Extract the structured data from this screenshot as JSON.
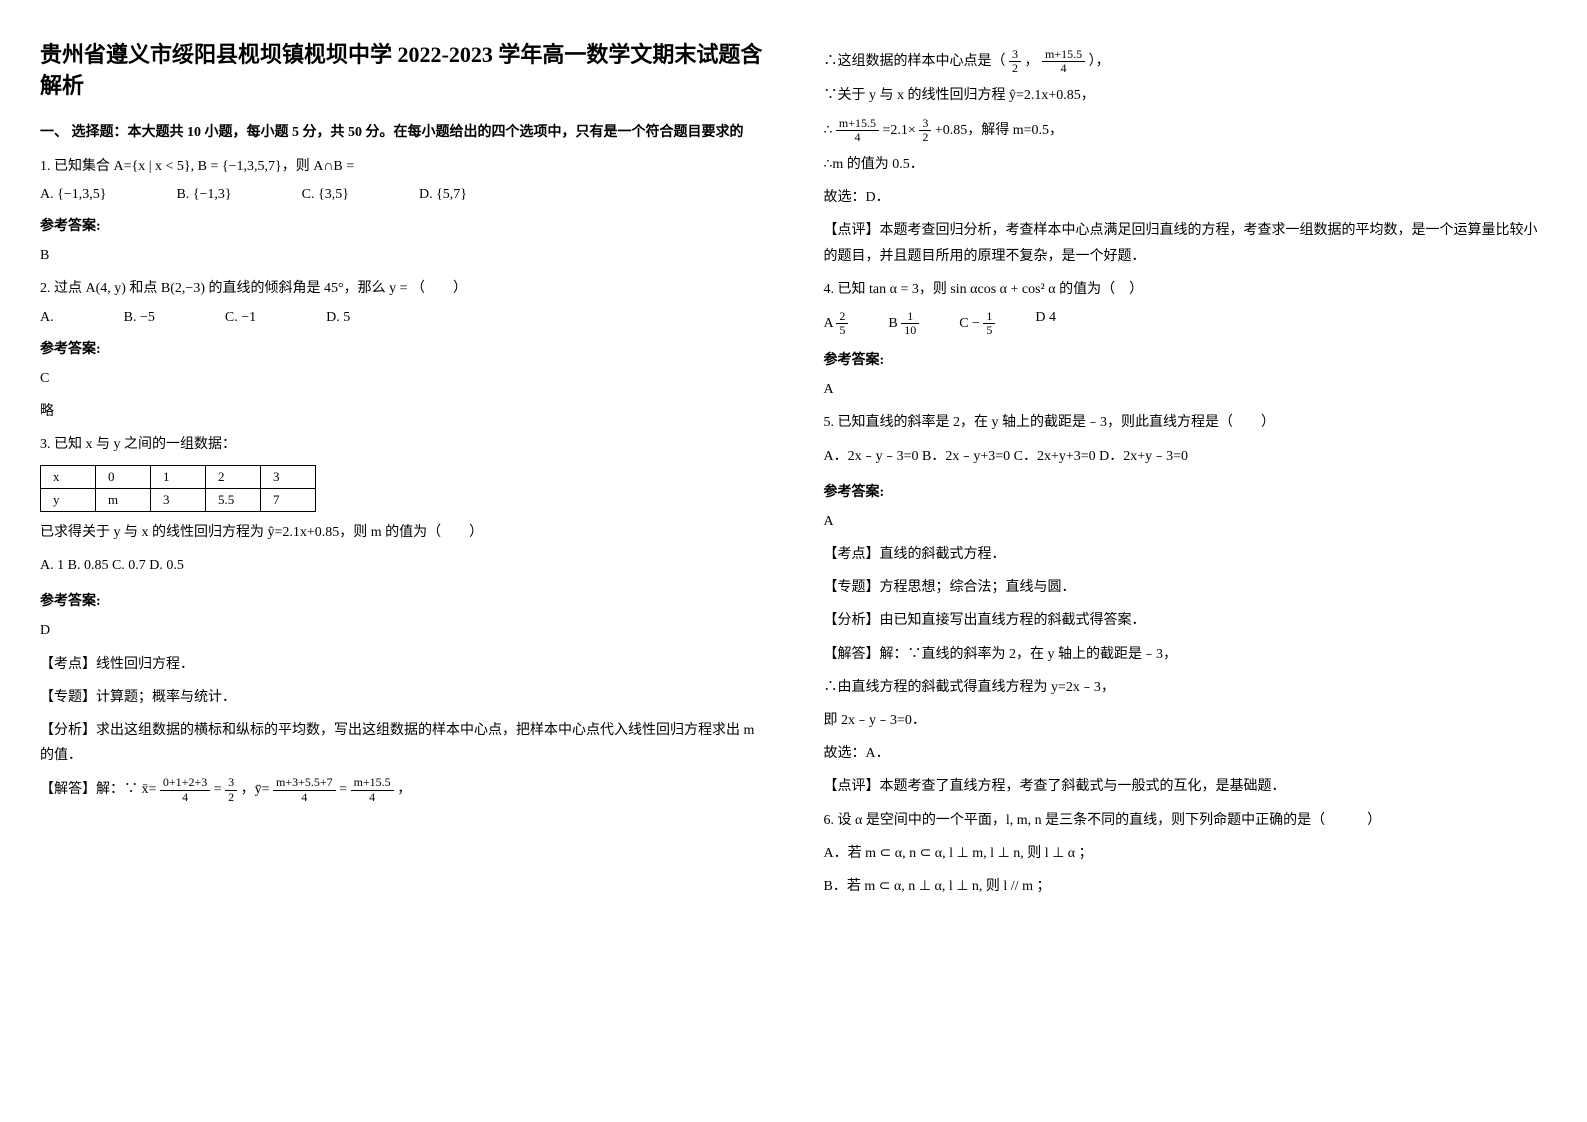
{
  "title": "贵州省遵义市绥阳县枧坝镇枧坝中学 2022-2023 学年高一数学文期末试题含解析",
  "sectionHead": "一、 选择题：本大题共 10 小题，每小题 5 分，共 50 分。在每小题给出的四个选项中，只有是一个符合题目要求的",
  "q1": {
    "stem": "1. 已知集合 A={x | x < 5}, B = {−1,3,5,7}，则 A∩B =",
    "opts": {
      "A": "{−1,3,5}",
      "B": "{−1,3}",
      "C": "{3,5}",
      "D": "{5,7}"
    },
    "ansLabel": "参考答案:",
    "ans": "B"
  },
  "q2": {
    "stem": "2. 过点 A(4, y) 和点 B(2,−3) 的直线的倾斜角是 45°，那么 y = （　　）",
    "opts": {
      "A": "A.",
      "B": "B.  −5",
      "C": "C.  −1",
      "D": "D.  5"
    },
    "ansLabel": "参考答案:",
    "ans": "C",
    "note": "略"
  },
  "q3": {
    "stem": "3. 已知 x 与 y 之间的一组数据：",
    "table": {
      "row1": [
        "x",
        "0",
        "1",
        "2",
        "3"
      ],
      "row2": [
        "y",
        "m",
        "3",
        "5.5",
        "7"
      ]
    },
    "stem2": "已求得关于 y 与 x 的线性回归方程为 ŷ=2.1x+0.85，则 m 的值为（　　）",
    "opts": "A. 1   B. 0.85     C. 0.7  D. 0.5",
    "ansLabel": "参考答案:",
    "ans": "D",
    "kd": "【考点】线性回归方程．",
    "zt": "【专题】计算题；概率与统计．",
    "fx": "【分析】求出这组数据的横标和纵标的平均数，写出这组数据的样本中心点，把样本中心点代入线性回归方程求出 m 的值．",
    "jd_pre": "【解答】解：∵ x̄=",
    "jd_frac1_num": "0+1+2+3",
    "jd_frac1_den": "4",
    "jd_eq1": " = ",
    "jd_frac2_num": "3",
    "jd_frac2_den": "2",
    "jd_mid": "，ȳ= ",
    "jd_frac3_num": "m+3+5.5+7",
    "jd_frac3_den": "4",
    "jd_eq2": " = ",
    "jd_frac4_num": "m+15.5",
    "jd_frac4_den": "4",
    "jd_tail": "，",
    "r_line1_pre": "∴这组数据的样本中心点是（",
    "r_line1_f1n": "3",
    "r_line1_f1d": "2",
    "r_line1_mid": "，",
    "r_line1_f2n": "m+15.5",
    "r_line1_f2d": "4",
    "r_line1_tail": "），",
    "r_line2": "∵关于 y 与 x 的线性回归方程 ŷ=2.1x+0.85，",
    "r_line3_pre": "∴ ",
    "r_line3_f1n": "m+15.5",
    "r_line3_f1d": "4",
    "r_line3_mid": " =2.1×",
    "r_line3_f2n": "3",
    "r_line3_f2d": "2",
    "r_line3_tail": "+0.85，解得 m=0.5，",
    "r_line4": "∴m 的值为 0.5．",
    "r_line5": "故选：D．",
    "dp": "【点评】本题考查回归分析，考查样本中心点满足回归直线的方程，考查求一组数据的平均数，是一个运算量比较小的题目，并且题目所用的原理不复杂，是一个好题．"
  },
  "q4": {
    "stem": "4. 已知 tan α = 3，则 sin αcos α + cos² α 的值为（　）",
    "opts": {
      "A_pre": "A  ",
      "A_num": "2",
      "A_den": "5",
      "B_pre": "B  ",
      "B_num": "1",
      "B_den": "10",
      "C_pre": "C  −",
      "C_num": "1",
      "C_den": "5",
      "D": "D   4"
    },
    "ansLabel": "参考答案:",
    "ans": " A"
  },
  "q5": {
    "stem": "5. 已知直线的斜率是 2，在 y 轴上的截距是﹣3，则此直线方程是（　　）",
    "opts": "A．2x﹣y﹣3=0  B．2x﹣y+3=0  C．2x+y+3=0   D．2x+y﹣3=0",
    "ansLabel": "参考答案:",
    "ans": "A",
    "kd": "【考点】直线的斜截式方程．",
    "zt": "【专题】方程思想；综合法；直线与圆．",
    "fx": "【分析】由已知直接写出直线方程的斜截式得答案．",
    "jd1": "【解答】解：∵直线的斜率为 2，在 y 轴上的截距是﹣3，",
    "jd2": "∴由直线方程的斜截式得直线方程为 y=2x﹣3，",
    "jd3": "即 2x﹣y﹣3=0．",
    "jd4": "故选：A．",
    "dp": "【点评】本题考查了直线方程，考查了斜截式与一般式的互化，是基础题．"
  },
  "q6": {
    "stem": "6. 设 α 是空间中的一个平面，l, m, n 是三条不同的直线，则下列命题中正确的是（　　　）",
    "optA": "A．若 m ⊂ α, n ⊂ α, l ⊥ m, l ⊥ n, 则 l ⊥ α ；",
    "optB": "B．若 m ⊂ α, n ⊥ α, l ⊥ n, 则 l // m ；"
  }
}
